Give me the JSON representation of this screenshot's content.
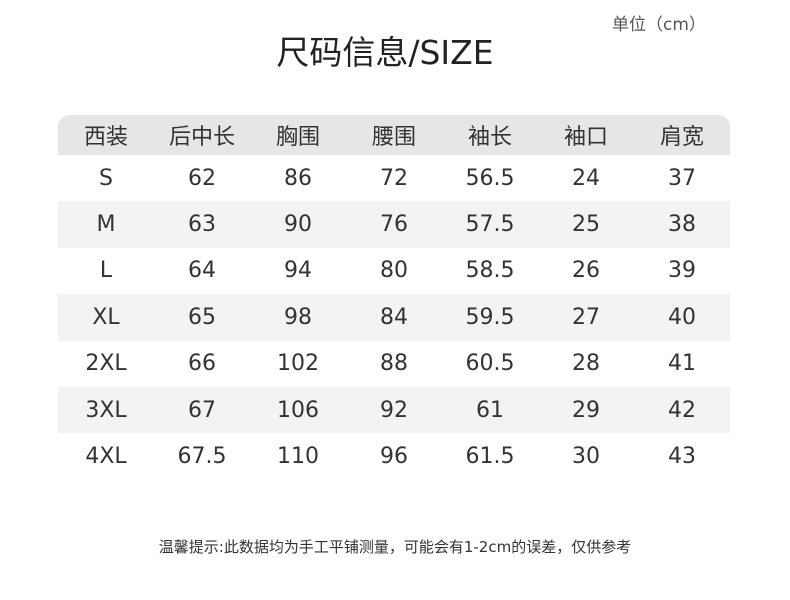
{
  "unit_label": "单位（cm）",
  "title": "尺码信息/SIZE",
  "columns": [
    "西装",
    "后中长",
    "胸围",
    "腰围",
    "袖长",
    "袖口",
    "肩宽"
  ],
  "rows": [
    [
      "S",
      "62",
      "86",
      "72",
      "56.5",
      "24",
      "37"
    ],
    [
      "M",
      "63",
      "90",
      "76",
      "57.5",
      "25",
      "38"
    ],
    [
      "L",
      "64",
      "94",
      "80",
      "58.5",
      "26",
      "39"
    ],
    [
      "XL",
      "65",
      "98",
      "84",
      "59.5",
      "27",
      "40"
    ],
    [
      "2XL",
      "66",
      "102",
      "88",
      "60.5",
      "28",
      "41"
    ],
    [
      "3XL",
      "67",
      "106",
      "92",
      "61",
      "29",
      "42"
    ],
    [
      "4XL",
      "67.5",
      "110",
      "96",
      "61.5",
      "30",
      "43"
    ]
  ],
  "note": "温馨提示:此数据均为手工平铺测量，可能会有1-2cm的误差，仅供参考",
  "colors": {
    "header_bg": "#e6e6e6",
    "stripe_bg": "#f3f3f3"
  }
}
